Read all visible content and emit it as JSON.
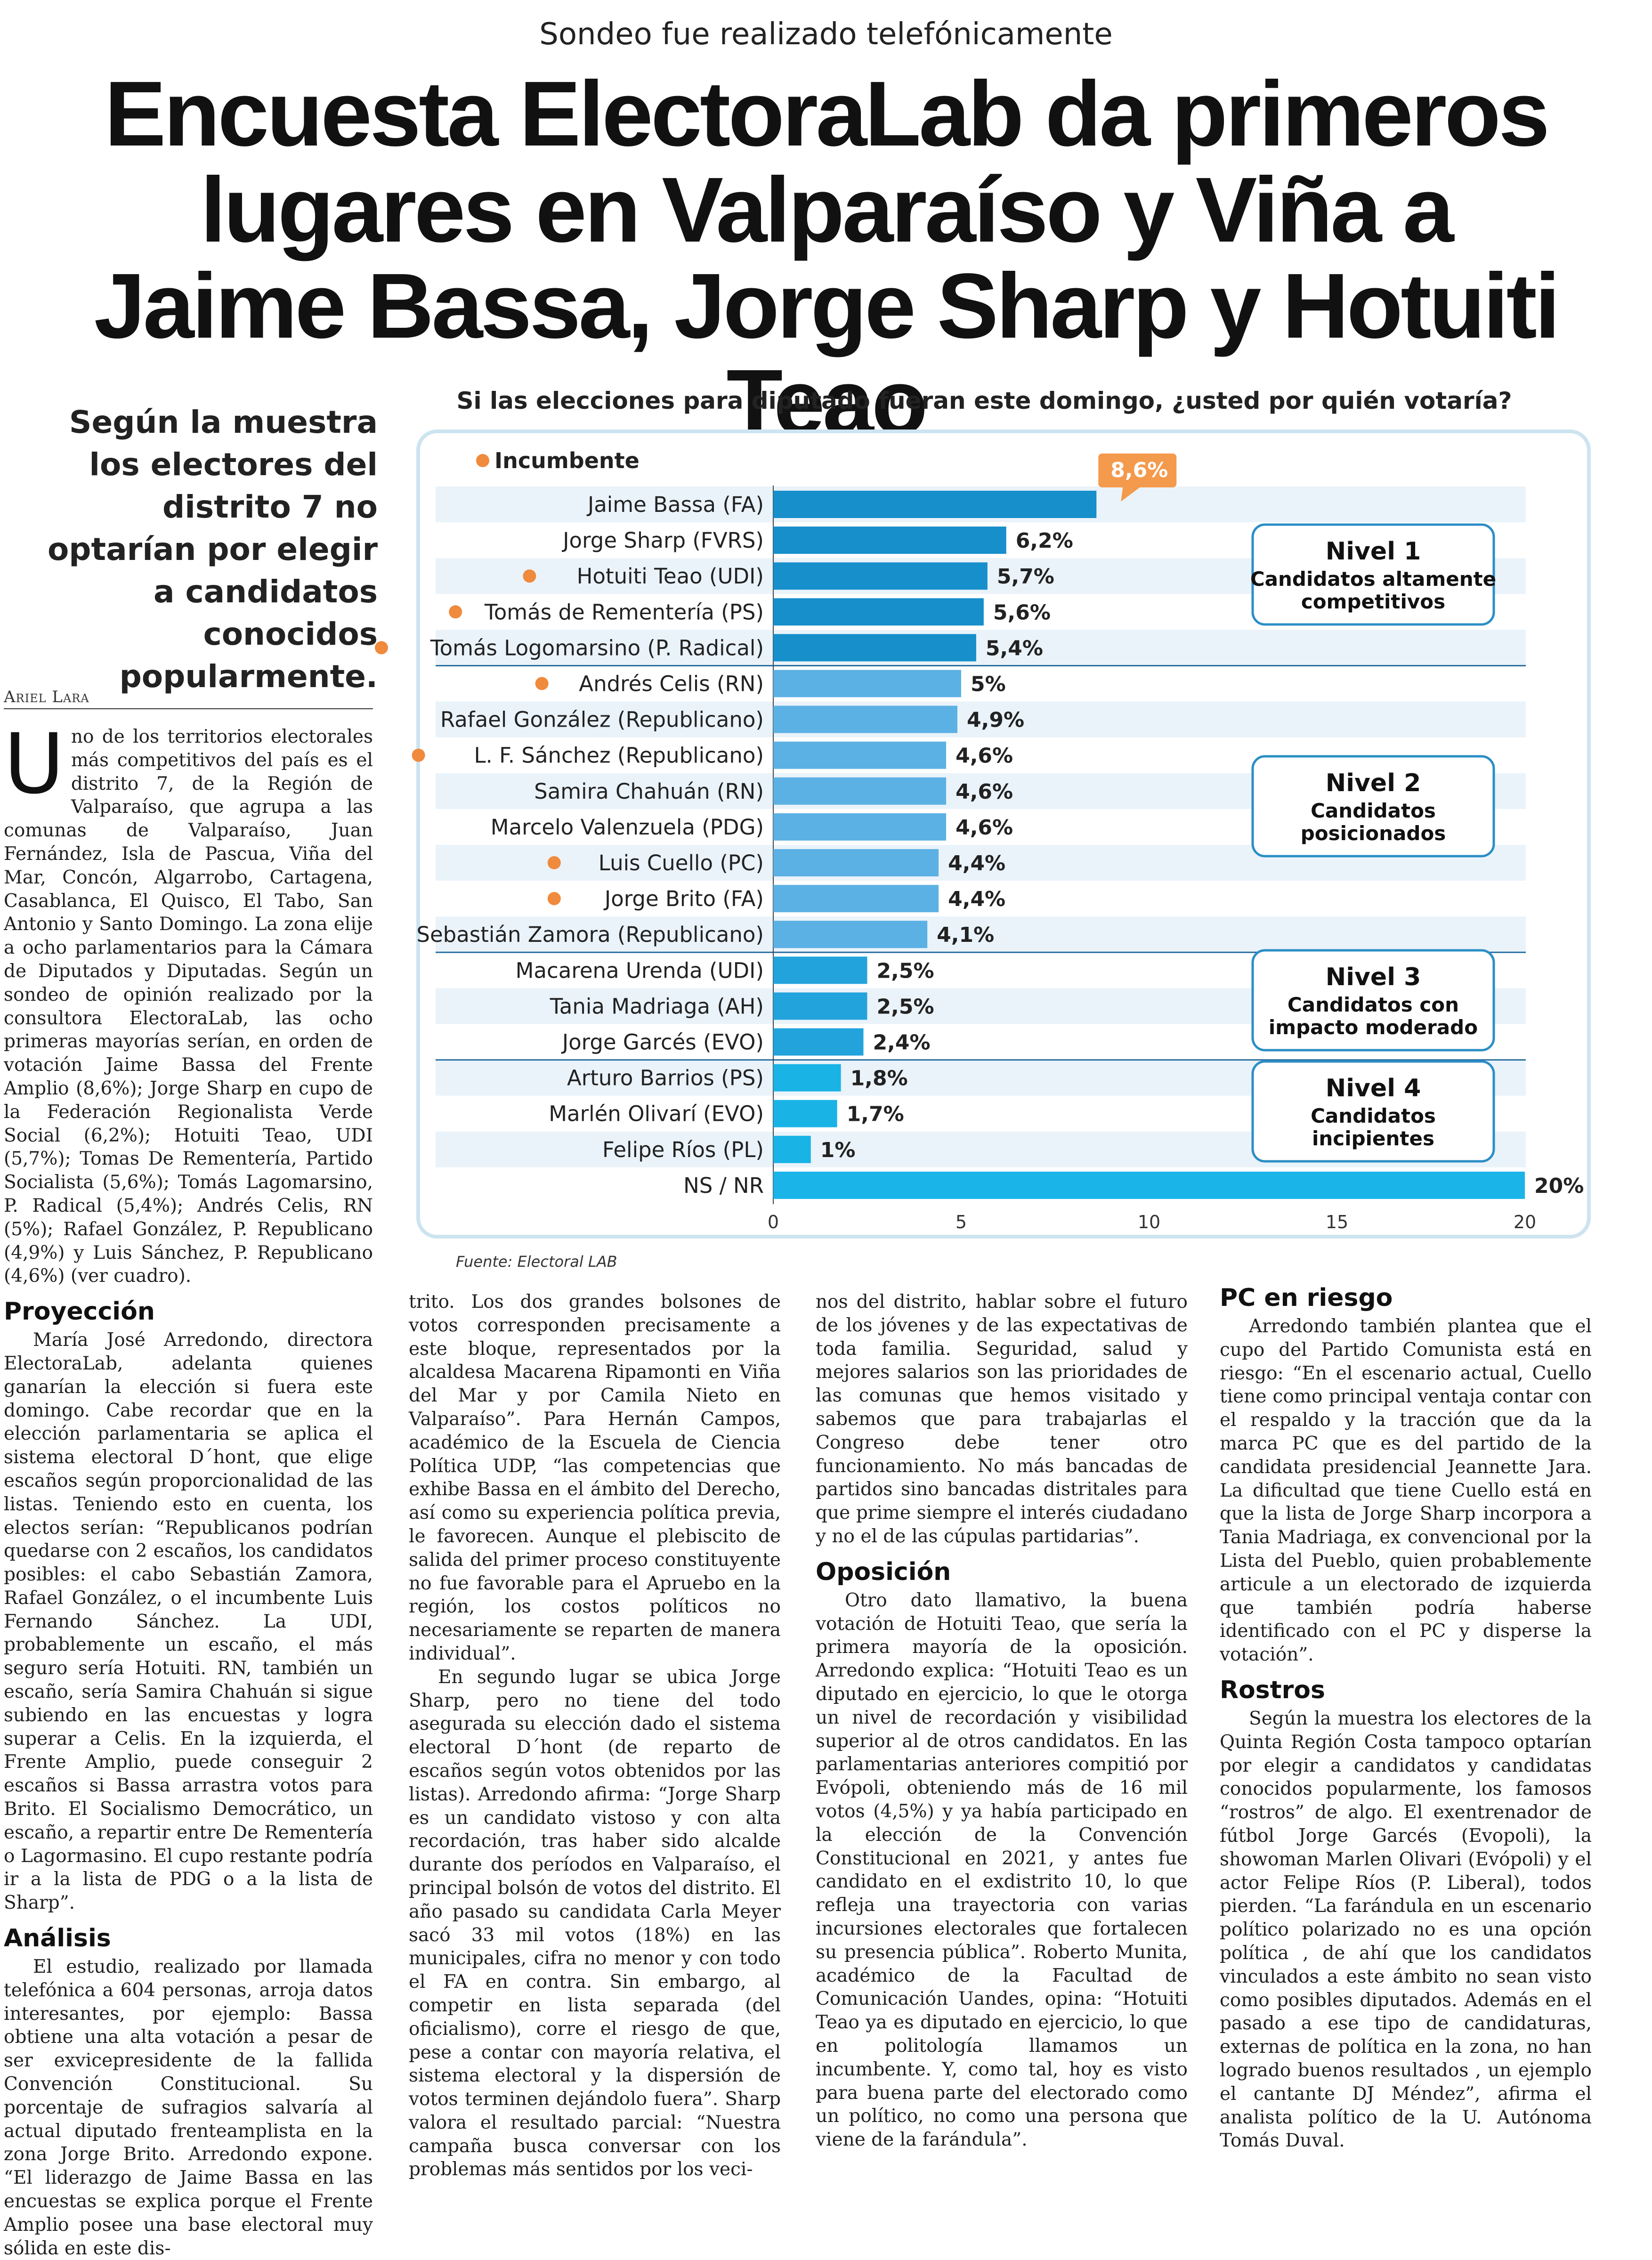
{
  "kicker": "Sondeo fue realizado telefónicamente",
  "headline": "Encuesta ElectoraLab da primeros lugares en Valparaíso y Viña a Jaime Bassa, Jorge Sharp y Hotuiti Teao",
  "lead": "Según la muestra los electores del distrito 7 no optarían por elegir a candidatos conocidos popularmente.",
  "byline": "Ariel Lara",
  "col1": {
    "dropcap": "U",
    "intro": "no de los territorios electorales más competitivos del país es el distrito 7, de la Región de Valparaíso, que agrupa a las comunas de Valparaíso, Juan Fernández, Isla de Pascua, Viña del Mar, Concón, Algarrobo, Cartagena, Casablanca, El Quisco, El Tabo, San Antonio y Santo Domingo. La zona elije a ocho parlamentarios para la Cámara de Diputados y Diputadas. Según un sondeo de opinión realizado por la consultora ElectoraLab, las ocho primeras mayorías serían, en orden de votación Jaime Bassa del Frente Amplio (8,6%); Jorge Sharp en cupo de la Federación Regionalista Verde Social (6,2%); Hotuiti Teao, UDI (5,7%); Tomas De Rementería, Partido Socialista (5,6%); Tomás Lagomarsino, P. Radical (5,4%); Andrés Celis, RN (5%); Rafael González, P. Republicano (4,9%) y Luis Sánchez, P. Republicano (4,6%) (ver cuadro).",
    "h_proyeccion": "Proyección",
    "proyeccion": "María José Arredondo, directora ElectoraLab, adelanta quienes ganarían la elección si fuera este domingo. Cabe recordar que en la elección parlamentaria se aplica el sistema electoral D´hont, que elige escaños según proporcionalidad de las listas. Teniendo esto en cuenta, los electos serían: “Republicanos podrían quedarse con 2 escaños, los candidatos posibles: el cabo Sebastián Zamora, Rafael González, o el incumbente Luis Fernando Sánchez. La UDI, probablemente un escaño, el más seguro sería Hotuiti. RN, también un escaño, sería Samira Chahuán si sigue subiendo en las encuestas y logra superar a Celis. En la izquierda, el Frente Amplio, puede conseguir 2 escaños si Bassa arrastra votos para Brito. El Socialismo Democrático, un escaño, a repartir entre De Rementería o Lagormasino. El cupo restante podría ir a la lista de PDG o a la lista de Sharp”.",
    "h_analisis": "Análisis",
    "analisis": "El estudio, realizado por llamada telefónica a 604 personas, arroja datos interesantes, por ejemplo: Bassa obtiene una alta votación a pesar de ser exvicepresidente de la fallida Convención Constitucional. Su porcentaje de sufragios salvaría al actual diputado frenteamplista en la zona Jorge Brito. Arredondo expone. “El liderazgo de Jaime Bassa en las encuestas se explica porque el Frente Amplio posee una base electoral muy sólida en este dis-"
  },
  "col2": {
    "p1": "trito. Los dos grandes bolsones de votos corresponden precisamente a este bloque, representados por la alcaldesa Macarena Ripamonti en Viña del Mar y por Camila Nieto en Valparaíso”. Para Hernán Campos, académico de la Escuela de Ciencia Política UDP, “las competencias que exhibe Bassa en el ámbito del Derecho, así como su experiencia política previa, le favorecen. Aunque el plebiscito de salida del primer proceso constituyente no fue favorable para el Apruebo en la región, los costos políticos no necesariamente se reparten de manera individual”.",
    "p2": "En segundo lugar se ubica Jorge Sharp, pero no tiene del todo asegurada su elección dado el sistema electoral D´hont (de reparto de escaños según votos obtenidos por las listas). Arredondo afirma: “Jorge Sharp es un candidato vistoso y con alta recordación, tras haber sido alcalde durante dos períodos en Valparaíso, el principal bolsón de votos del distrito. El año pasado su candidata Carla Meyer sacó 33 mil votos (18%) en las municipales, cifra no menor y con todo el FA en contra. Sin embargo, al competir en lista separada (del oficialismo), corre el riesgo de que, pese a contar con mayoría relativa, el sistema electoral y la dispersión de votos terminen dejándolo fuera”. Sharp valora el resultado parcial: “Nuestra campaña busca conversar con los problemas más sentidos por los veci-"
  },
  "col3": {
    "p1": "nos del distrito, hablar sobre el futuro de los jóvenes y de las expectativas de toda familia. Seguridad, salud y mejores salarios son las prioridades de las comunas que hemos visitado y sabemos que para trabajarlas el Congreso debe tener otro funcionamiento. No más bancadas de partidos sino bancadas distritales para que prime siempre el interés ciudadano y no el de las cúpulas partidarias”.",
    "h_oposicion": "Oposición",
    "oposicion": "Otro dato llamativo, la buena votación de Hotuiti Teao, que sería la primera mayoría de la oposición. Arredondo explica: “Hotuiti Teao es un diputado en ejercicio, lo que le otorga un nivel de recordación y visibilidad superior al de otros candidatos. En las parlamentarias anteriores compitió por Evópoli, obteniendo más de 16 mil votos (4,5%) y ya había participado en la elección de la Convención Constitucional en 2021, y antes fue candidato en el exdistrito 10, lo que refleja una trayectoria con varias incursiones electorales que fortalecen su presencia pública”. Roberto Munita, académico de la Facultad de Comunicación Uandes, opina: “Hotuiti Teao ya es diputado en ejercicio, lo que en politología llamamos un incumbente. Y, como tal, hoy es visto para buena parte del electorado como un político, no como una persona que viene de la farándula”."
  },
  "col4": {
    "h_pc": "PC en riesgo",
    "pc": "Arredondo también plantea que el cupo del Partido Comunista está en riesgo: “En el escenario actual, Cuello tiene como principal ventaja contar con el respaldo y la tracción que da la marca PC que es del partido de la candidata presidencial Jeannette Jara. La dificultad que tiene Cuello está en que la lista de Jorge Sharp incorpora a Tania Madriaga, ex convencional por la Lista del Pueblo, quien probablemente articule a un electorado de izquierda que también podría haberse identificado con el PC y disperse la votación”.",
    "h_rostros": "Rostros",
    "rostros": "Según la muestra los electores de la Quinta Región Costa tampoco optarían por elegir a candidatos y candidatas conocidos popularmente, los famosos “rostros” de algo. El exentrenador de fútbol Jorge Garcés (Evopoli), la showoman Marlen Olivari (Evópoli) y el actor Felipe Ríos (P. Liberal), todos pierden. “La farándula en un escenario político polarizado no es una opción política , de ahí que los candidatos vinculados a este ámbito no sean visto como posibles diputados. Además en el pasado a ese tipo de candidaturas, externas de política en la zona, no han logrado buenos resultados , un ejemplo el cantante DJ Méndez”, afirma el analista político de la U. Autónoma Tomás Duval."
  },
  "chart_data": {
    "type": "bar",
    "orientation": "horizontal",
    "title": "Si las elecciones para diputado fueran este domingo, ¿usted por quién votaría?",
    "legend": "Incumbente",
    "source": "Fuente: Electoral LAB",
    "xlim": [
      0,
      20
    ],
    "xticks": [
      "0",
      "5",
      "10",
      "15",
      "20"
    ],
    "categories": [
      "Jaime Bassa (FA)",
      "Jorge Sharp (FVRS)",
      "Hotuiti Teao (UDI)",
      "Tomás de Rementería (PS)",
      "Tomás Logomarsino (P. Radical)",
      "Andrés Celis (RN)",
      "Rafael González (Republicano)",
      "L. F. Sánchez (Republicano)",
      "Samira Chahuán (RN)",
      "Marcelo Valenzuela (PDG)",
      "Luis Cuello (PC)",
      "Jorge Brito (FA)",
      "Sebastián Zamora (Republicano)",
      "Macarena Urenda (UDI)",
      "Tania Madriaga (AH)",
      "Jorge Garcés (EVO)",
      "Arturo Barrios (PS)",
      "Marlén Olivarí (EVO)",
      "Felipe Ríos (PL)",
      "NS / NR"
    ],
    "values": [
      8.6,
      6.2,
      5.7,
      5.6,
      5.4,
      5,
      4.9,
      4.6,
      4.6,
      4.6,
      4.4,
      4.4,
      4.1,
      2.5,
      2.5,
      2.4,
      1.8,
      1.7,
      1,
      20
    ],
    "value_labels": [
      "8,6%",
      "6,2%",
      "5,7%",
      "5,6%",
      "5,4%",
      "5%",
      "4,9%",
      "4,6%",
      "4,6%",
      "4,6%",
      "4,4%",
      "4,4%",
      "4,1%",
      "2,5%",
      "2,5%",
      "2,4%",
      "1,8%",
      "1,7%",
      "1%",
      "20%"
    ],
    "incumbent": [
      false,
      false,
      true,
      true,
      true,
      true,
      false,
      true,
      false,
      false,
      true,
      true,
      false,
      false,
      false,
      false,
      false,
      false,
      false,
      false
    ],
    "groups": [
      {
        "title": "Nivel 1",
        "subtitle": "Candidatos altamente competitivos",
        "rows": [
          0,
          4
        ]
      },
      {
        "title": "Nivel 2",
        "subtitle": "Candidatos posicionados",
        "rows": [
          5,
          12
        ]
      },
      {
        "title": "Nivel 3",
        "subtitle": "Candidatos con impacto moderado",
        "rows": [
          13,
          15
        ]
      },
      {
        "title": "Nivel 4",
        "subtitle": "Candidatos incipientes",
        "rows": [
          16,
          18
        ]
      }
    ],
    "colors": {
      "level1": "#168fcb",
      "level2": "#5cb1e4",
      "level3": "#23a3dc",
      "level4": "#19b3e6",
      "nsnr": "#1ab4e8",
      "row_band": "#eaf3fa",
      "incumbent_dot": "#f08a3c",
      "callout": "#f49a4c",
      "box_border": "#2b8ec6"
    }
  }
}
